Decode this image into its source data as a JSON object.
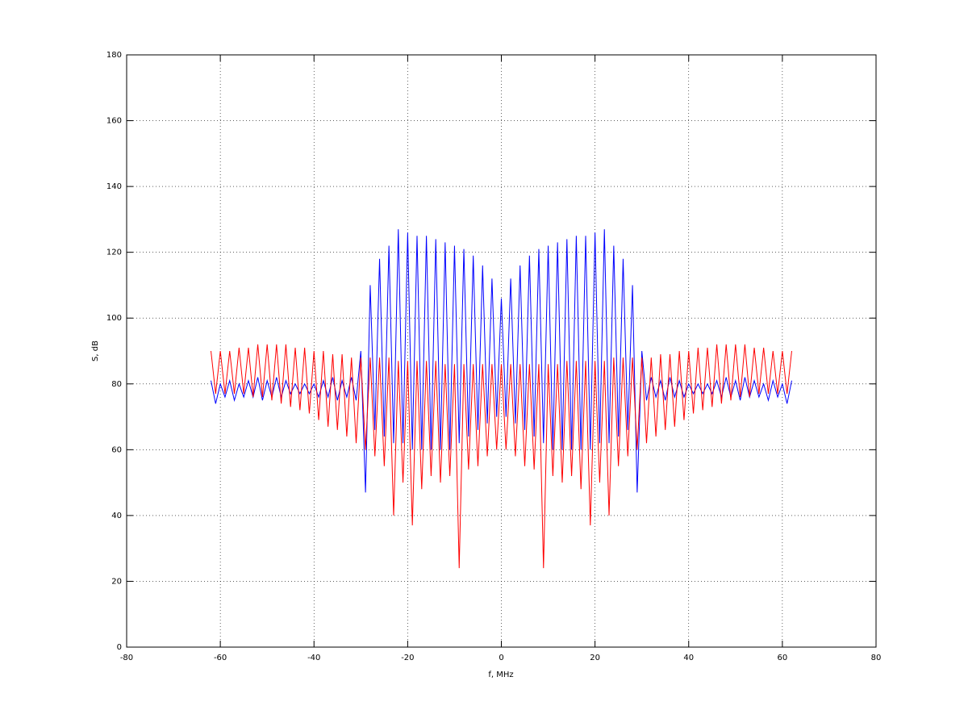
{
  "chart_data": {
    "type": "line",
    "xlabel": "f, MHz",
    "ylabel": "S, dB",
    "xlim": [
      -80,
      80
    ],
    "ylim": [
      0,
      180
    ],
    "xticks": [
      -80,
      -60,
      -40,
      -20,
      0,
      20,
      40,
      60,
      80
    ],
    "yticks": [
      0,
      20,
      40,
      60,
      80,
      100,
      120,
      140,
      160,
      180
    ],
    "grid": true,
    "x": [
      -62,
      -61,
      -60,
      -59,
      -58,
      -57,
      -56,
      -55,
      -54,
      -53,
      -52,
      -51,
      -50,
      -49,
      -48,
      -47,
      -46,
      -45,
      -44,
      -43,
      -42,
      -41,
      -40,
      -39,
      -38,
      -37,
      -36,
      -35,
      -34,
      -33,
      -32,
      -31,
      -30,
      -29,
      -28,
      -27,
      -26,
      -25,
      -24,
      -23,
      -22,
      -21,
      -20,
      -19,
      -18,
      -17,
      -16,
      -15,
      -14,
      -13,
      -12,
      -11,
      -10,
      -9,
      -8,
      -7,
      -6,
      -5,
      -4,
      -3,
      -2,
      -1,
      0,
      1,
      2,
      3,
      4,
      5,
      6,
      7,
      8,
      9,
      10,
      11,
      12,
      13,
      14,
      15,
      16,
      17,
      18,
      19,
      20,
      21,
      22,
      23,
      24,
      25,
      26,
      27,
      28,
      29,
      30,
      31,
      32,
      33,
      34,
      35,
      36,
      37,
      38,
      39,
      40,
      41,
      42,
      43,
      44,
      45,
      46,
      47,
      48,
      49,
      50,
      51,
      52,
      53,
      54,
      55,
      56,
      57,
      58,
      59,
      60,
      61,
      62
    ],
    "series": [
      {
        "color": "#0000ff",
        "values": [
          81,
          74,
          80,
          76,
          81,
          75,
          80,
          76,
          81,
          76,
          82,
          75,
          81,
          76,
          82,
          76,
          81,
          77,
          80,
          77,
          80,
          77,
          80,
          76,
          81,
          76,
          82,
          75,
          81,
          76,
          82,
          75,
          90,
          47,
          110,
          66,
          118,
          64,
          122,
          62,
          127,
          62,
          126,
          60,
          125,
          60,
          125,
          60,
          124,
          60,
          123,
          60,
          122,
          62,
          121,
          64,
          119,
          66,
          116,
          68,
          112,
          70,
          106,
          70,
          112,
          68,
          116,
          66,
          119,
          64,
          121,
          62,
          122,
          60,
          123,
          60,
          124,
          60,
          125,
          60,
          125,
          60,
          126,
          62,
          127,
          62,
          122,
          64,
          118,
          66,
          110,
          47,
          90,
          75,
          82,
          76,
          81,
          75,
          82,
          76,
          81,
          76,
          80,
          77,
          80,
          77,
          80,
          77,
          81,
          76,
          82,
          76,
          81,
          75,
          82,
          76,
          81,
          76,
          80,
          75,
          81,
          76,
          80,
          74,
          81
        ]
      },
      {
        "color": "#ff0000",
        "values": [
          90,
          77,
          90,
          77,
          90,
          77,
          91,
          77,
          91,
          76,
          92,
          76,
          92,
          75,
          92,
          74,
          92,
          73,
          91,
          72,
          91,
          71,
          90,
          69,
          90,
          67,
          89,
          66,
          89,
          64,
          88,
          62,
          88,
          60,
          88,
          58,
          88,
          55,
          88,
          40,
          87,
          50,
          87,
          37,
          87,
          48,
          87,
          52,
          87,
          50,
          86,
          52,
          86,
          24,
          86,
          54,
          86,
          55,
          86,
          58,
          86,
          60,
          86,
          60,
          86,
          58,
          86,
          55,
          86,
          54,
          86,
          24,
          86,
          52,
          86,
          50,
          87,
          52,
          87,
          48,
          87,
          37,
          87,
          50,
          87,
          40,
          88,
          55,
          88,
          58,
          88,
          60,
          88,
          62,
          88,
          64,
          89,
          66,
          89,
          67,
          90,
          69,
          90,
          71,
          91,
          72,
          91,
          73,
          92,
          74,
          92,
          75,
          92,
          76,
          92,
          76,
          91,
          77,
          91,
          77,
          90,
          77,
          90,
          77,
          90
        ]
      }
    ]
  }
}
